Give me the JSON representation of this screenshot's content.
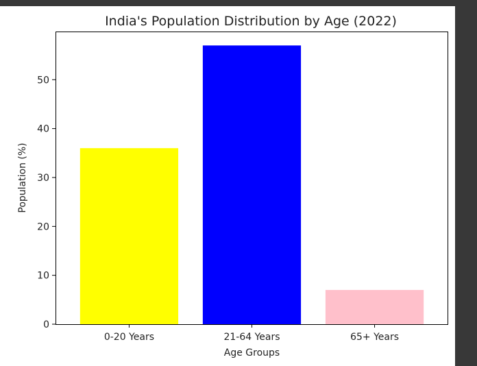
{
  "chart_data": {
    "type": "bar",
    "title": "India's Population Distribution by Age (2022)",
    "xlabel": "Age Groups",
    "ylabel": "Population (%)",
    "categories": [
      "0-20 Years",
      "21-64 Years",
      "65+ Years"
    ],
    "values": [
      36,
      57,
      7
    ],
    "colors": [
      "#ffff00",
      "#0000ff",
      "#ffc0cb"
    ],
    "ylim": [
      0,
      59.85
    ],
    "yticks": [
      0,
      10,
      20,
      30,
      40,
      50
    ],
    "ytick_labels": [
      "0",
      "10",
      "20",
      "30",
      "40",
      "50"
    ],
    "grid": false,
    "legend": false
  },
  "theme": {
    "page_background": "#383838",
    "figure_background": "#ffffff",
    "axis_color": "#000000",
    "text_color": "#222222"
  }
}
